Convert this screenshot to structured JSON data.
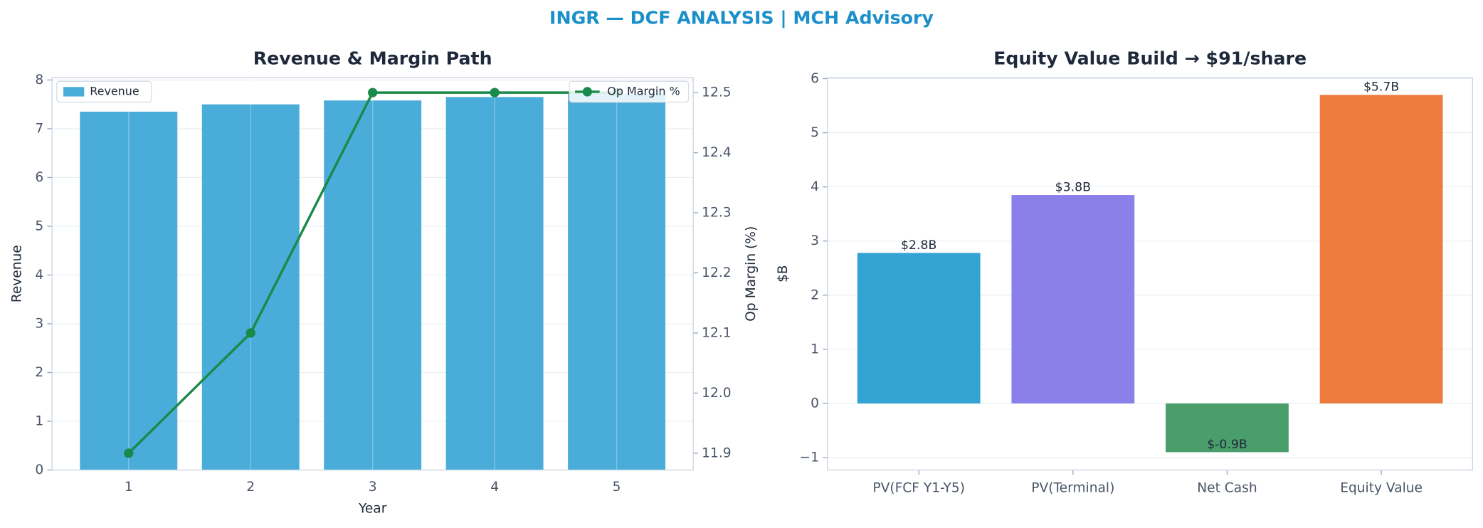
{
  "title": "INGR — DCF ANALYSIS | MCH Advisory",
  "chart_data": [
    {
      "type": "bar_line",
      "title": "Revenue & Margin Path",
      "categories": [
        "1",
        "2",
        "3",
        "4",
        "5"
      ],
      "series": [
        {
          "name": "Revenue",
          "color": "#4aacd9",
          "values": [
            7.35,
            7.5,
            7.58,
            7.65,
            7.72
          ],
          "legend": "upper left"
        },
        {
          "name": "Op Margin %",
          "color": "#1a8a4a",
          "axis": "y2",
          "values": [
            11.9,
            12.1,
            12.5,
            12.5,
            12.5
          ],
          "legend": "upper right"
        }
      ],
      "xlabel": "Year",
      "ylabel": "Revenue",
      "y2label": "Op Margin (%)",
      "ylim": [
        0,
        8.05
      ],
      "yticks": [
        0,
        1,
        2,
        3,
        4,
        5,
        6,
        7,
        8
      ],
      "y2lim": [
        11.872,
        12.525
      ],
      "y2ticks": [
        11.9,
        {
          "value": 12,
          "label": "12.0"
        },
        12.1,
        12.2,
        12.3,
        12.4,
        12.5
      ],
      "grid": true
    },
    {
      "type": "bar",
      "title": "Equity Value Build → $91/share",
      "categories": [
        "PV(FCF Y1-Y5)",
        "PV(Terminal)",
        "Net Cash",
        "Equity Value"
      ],
      "values": [
        2.78,
        3.85,
        -0.9,
        5.7
      ],
      "value_labels": [
        "$2.8B",
        "$3.8B",
        "$-0.9B",
        "$5.7B"
      ],
      "colors": [
        "#33a3d4",
        "#8b7fea",
        "#4a9e6b",
        "#ed7b3e"
      ],
      "ylabel": "$B",
      "ylim": [
        -1.23,
        6.02
      ],
      "yticks": [
        {
          "value": -1,
          "label": "−1"
        },
        0,
        1,
        2,
        3,
        4,
        5,
        6
      ],
      "grid": true
    }
  ]
}
